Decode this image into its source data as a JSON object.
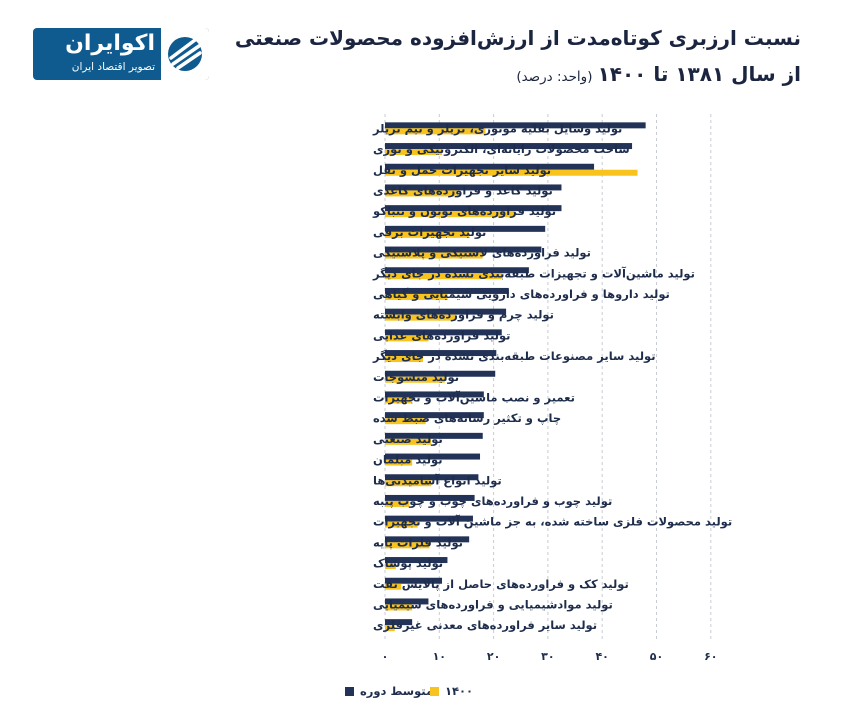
{
  "header": {
    "title": "نسبت ارزبری کوتاه‌مدت از ارزش‌افزوده محصولات صنعتی",
    "subtitle": "از سال ۱۳۸۱ تا ۱۴۰۰",
    "unit": "(واحد: درصد)"
  },
  "logo": {
    "name": "اکوایران",
    "tagline": "تصویر اقتصاد ایران",
    "icon": "stripes-logo-icon"
  },
  "chart_data": {
    "type": "bar",
    "orientation": "horizontal",
    "categories": [
      "تولید وسایل نقلیه موتوری، تریلر و نیم تریلر",
      "ساخت محصولات رایانه‌ای، الکترونیکی و نوری",
      "تولید سایر تجهیزات حمل و نقل",
      "تولید کاغذ و فراورده‌های کاغذی",
      "تولید فراورده‌های توتون و تنباکو",
      "تولید تجهیزات برقی",
      "تولید فراورده‌های لاستیکی و پلاستیکی",
      "تولید ماشین‌آلات و تجهیزات طبقه‌بندی نشده در جای دیگر",
      "تولید داروها و فراورده‌های دارویی شیمیایی و گیاهی",
      "تولید چرم و فراورده‌های وابسته",
      "تولید فراورده‌های غذایی",
      "تولید سایر مصنوعات طبقه‌بندی نشده در جای دیگر",
      "تولید منسوجات",
      "تعمیر و نصب ماشین‌آلات و تجهیزات",
      "چاپ و تکثیر رسانه‌های ضبط شده",
      "تولید صنعتی",
      "تولید مبلمان",
      "تولید انواع آشامیدنی‌ها",
      "تولید چوب و فراورده‌های چوب و چوب پنبه",
      "تولید محصولات فلزی ساخته شده، به جز ماشین آلات و تجهیزات",
      "تولید فلزات پایه",
      "تولید پوشاک",
      "تولید کک و فراورده‌های حاصل از پالایش نفت",
      "تولید موادشیمیایی و فراورده‌های شیمیایی",
      "تولید سایر فراورده‌های معدنی غیرفلزی"
    ],
    "series": [
      {
        "name": "متوسط دوره",
        "color": "#233257",
        "values": [
          48,
          45.5,
          38.5,
          32.5,
          32.5,
          29.5,
          28.8,
          26.5,
          22.8,
          22.3,
          21.5,
          20.5,
          20.3,
          18.2,
          18.2,
          18,
          17.5,
          17.2,
          16.5,
          16.2,
          15.5,
          11.5,
          10.5,
          8,
          5
        ]
      },
      {
        "name": "۱۴۰۰",
        "color": "#f8c31c",
        "values": [
          18.5,
          10.5,
          46.5,
          13.5,
          24,
          15.5,
          18,
          21.5,
          11.5,
          13,
          8,
          7,
          11,
          5,
          7.5,
          8.5,
          5,
          8.5,
          4.5,
          6,
          8.2,
          2,
          3,
          5,
          1.8
        ]
      }
    ],
    "x_ticks": [
      "۰",
      "۱۰",
      "۲۰",
      "۳۰",
      "۴۰",
      "۵۰",
      "۶۰"
    ],
    "xlim": [
      0,
      60
    ],
    "grid": "vertical dashed",
    "legend_position": "bottom"
  }
}
